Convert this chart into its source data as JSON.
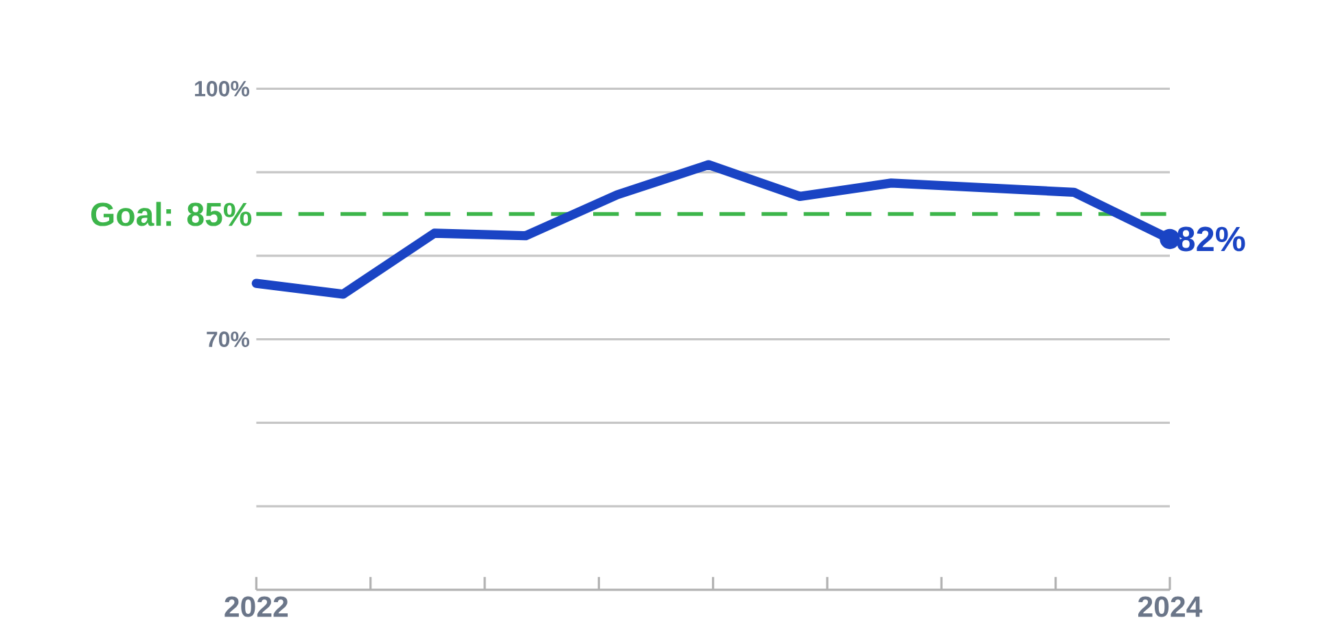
{
  "chart_data": {
    "type": "line",
    "x": [
      2022.0,
      2022.19,
      2022.39,
      2022.59,
      2022.79,
      2022.99,
      2023.19,
      2023.39,
      2023.79,
      2024.0
    ],
    "series": [
      {
        "color": "#1a44c4",
        "values": [
          76.7,
          75.4,
          82.7,
          82.4,
          87.3,
          90.9,
          87.1,
          88.7,
          87.6,
          82
        ]
      }
    ],
    "xlim": [
      2022,
      2024
    ],
    "xticks": [
      2022,
      {
        "value": 2022.25,
        "label": null
      },
      {
        "value": 2022.5,
        "label": null
      },
      {
        "value": 2022.75,
        "label": null
      },
      {
        "value": 2023,
        "label": null
      },
      {
        "value": 2023.25,
        "label": null
      },
      {
        "value": 2023.5,
        "label": null
      },
      {
        "value": 2023.75,
        "label": null
      },
      2024
    ],
    "ylim": [
      40,
      100
    ],
    "yticks": [
      {
        "value": 50,
        "label": null
      },
      {
        "value": 60,
        "label": null
      },
      {
        "value": 70,
        "label": "70%"
      },
      {
        "value": 80,
        "label": null
      },
      {
        "value": 90,
        "label": null
      },
      {
        "value": 100,
        "label": "100%"
      }
    ],
    "grid": "y",
    "marker": "none",
    "line_style": "solid",
    "ref_lines": [
      {
        "axis": "y",
        "value": 85,
        "label": "Goal: 85%",
        "color": "#3cb54a",
        "line_style": "dashed"
      }
    ],
    "annotations": [
      {
        "text": "82%",
        "x": 2024,
        "y": 82
      }
    ]
  }
}
